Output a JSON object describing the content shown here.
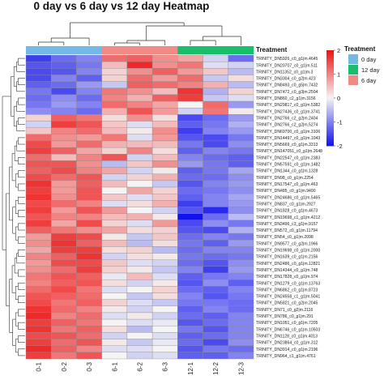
{
  "chart_data": {
    "type": "heatmap",
    "title": "0 day vs 6 day vs 12 day Heatmap",
    "columns": [
      "0-1",
      "0-2",
      "0-3",
      "6-1",
      "6-2",
      "6-3",
      "12-1",
      "12-2",
      "12-3"
    ],
    "column_groups": [
      "0 day",
      "0 day",
      "0 day",
      "6 day",
      "6 day",
      "6 day",
      "12 day",
      "12 day",
      "12 day"
    ],
    "annotation_title": "Treatment",
    "legend": {
      "title": "Treatment",
      "entries": [
        {
          "label": "0 day",
          "color": "#74B9E6"
        },
        {
          "label": "12 day",
          "color": "#19BE6A"
        },
        {
          "label": "6 day",
          "color": "#F08A84"
        }
      ]
    },
    "colorbar": {
      "ticks": [
        2,
        1,
        0,
        -1,
        -2
      ],
      "range": [
        -2,
        2
      ],
      "low": "#1111EE",
      "mid": "#F4F4F4",
      "high": "#EE1111"
    },
    "rows": [
      "TRINITY_DN5926_c0_g1|m.4645",
      "TRINITY_DN20707_c0_g1|m.511",
      "TRINITY_DN11352_c0_g1|m.3",
      "TRINITY_DN3304_c0_g2|m.423",
      "TRINITY_DN8493_c0_g5|m.7432",
      "TRINITY_DN7472_c0_g3|m.2504",
      "TRINITY_DN860_c2_g1|m.3156",
      "TRINITY_DN29817_c0_g1|m.5382",
      "TRINITY_DN27436_c0_g1|m.3741",
      "TRINITY_DN2766_c2_g2|m.2404",
      "TRINITY_DN2766_c2_g2|m.5274",
      "TRINITY_DN69700_c0_g1|m.3106",
      "TRINITY_DN14497_c0_g1|m.1043",
      "TRINITY_DN5669_c0_g1|m.3313",
      "TRINITY_DN147051_c0_g1|m.2648",
      "TRINITY_DN22547_c0_g1|m.2383",
      "TRINITY_DN57591_c0_g1|m.1482",
      "TRINITY_DN1344_c0_g1|m.1328",
      "TRINITY_DN98_c0_g1|m.2254",
      "TRINITY_DN17547_c0_g1|m.463",
      "TRINITY_DN485_c0_g1|m.9490",
      "TRINITY_DN24686_c0_g1|m.5465",
      "TRINITY_DN837_c0_g1|m.2927",
      "TRINITY_DN1828_c0_g1|m.4673",
      "TRINITY_DN19698_c1_g1|m.4212",
      "TRINITY_DN3496_c3_g1|m.9157",
      "TRINITY_DN572_c0_g1|m.11794",
      "TRINITY_DN54_c0_g1|m.2098",
      "TRINITY_DN9577_c0_g2|m.1966",
      "TRINITY_DN19698_c0_g1|m.2000",
      "TRINITY_DN1639_c0_g1|m.2156",
      "TRINITY_DN2486_c0_g1|m.12821",
      "TRINITY_DN14344_c0_g1|m.748",
      "TRINITY_DN17828_c0_g1|m.974",
      "TRINITY_DN1279_c0_g1|m.13763",
      "TRINITY_DN6862_c0_g1|m.8723",
      "TRINITY_DN24558_c1_g1|m.5041",
      "TRINITY_DN5821_c0_g2|m.2045",
      "TRINITY_DN71_c0_g2|m.2116",
      "TRINITY_DN786_c0_g1|m.291",
      "TRINITY_DN1051_c0_g1|m.7205",
      "TRINITY_DN6746_c0_g1|m.10503",
      "TRINITY_DN1128_c0_g1|m.4013",
      "TRINITY_DN23864_c0_g1|m.312",
      "TRINITY_DN3914_c0_g1|m.2196",
      "TRINITY_DN964_c1_g1|m.4761"
    ],
    "values": [
      [
        -1.6,
        -1.2,
        -1.0,
        1.2,
        1.3,
        0.9,
        0.7,
        -0.3,
        -1.2
      ],
      [
        -1.4,
        -1.3,
        -1.1,
        0.5,
        1.8,
        0.9,
        1.1,
        -0.2,
        -0.3
      ],
      [
        -1.5,
        -1.4,
        -1.0,
        0.3,
        0.9,
        1.3,
        0.8,
        0.4,
        -0.5
      ],
      [
        -1.5,
        -1.0,
        -1.3,
        0.3,
        1.2,
        0.8,
        1.2,
        -0.4,
        0.2
      ],
      [
        -1.3,
        -1.2,
        -0.8,
        -0.4,
        1.3,
        1.2,
        1.0,
        0.6,
        -0.5
      ],
      [
        -1.1,
        -1.5,
        -1.0,
        1.1,
        0.9,
        0.5,
        1.7,
        -0.6,
        0.3
      ],
      [
        -1.2,
        -0.9,
        -1.2,
        1.0,
        0.6,
        1.3,
        1.6,
        -0.4,
        -0.2
      ],
      [
        -1.1,
        -0.8,
        -1.0,
        1.2,
        1.0,
        0.7,
        0.0,
        1.2,
        -0.8
      ],
      [
        -0.9,
        -1.0,
        -1.2,
        0.6,
        1.4,
        0.8,
        -0.3,
        1.1,
        0.1
      ],
      [
        0.3,
        1.3,
        1.1,
        0.2,
        0.9,
        0.2,
        -1.5,
        -1.2,
        -0.8
      ],
      [
        -0.3,
        1.6,
        1.4,
        0.4,
        -0.2,
        0.5,
        -1.3,
        -1.1,
        -0.6
      ],
      [
        0.4,
        1.0,
        1.2,
        0.5,
        0.1,
        0.9,
        -1.6,
        -1.0,
        -0.8
      ],
      [
        1.2,
        0.9,
        0.8,
        1.1,
        -0.2,
        0.8,
        -1.4,
        -1.5,
        -1.1
      ],
      [
        1.5,
        0.8,
        1.2,
        0.6,
        0.5,
        0.5,
        -1.1,
        -1.5,
        -0.9
      ],
      [
        1.6,
        1.3,
        0.7,
        0.3,
        1.0,
        0.2,
        -1.3,
        -1.0,
        -1.1
      ],
      [
        1.2,
        0.5,
        1.0,
        1.4,
        -0.3,
        0.5,
        -1.0,
        -1.2,
        -1.3
      ],
      [
        1.4,
        1.4,
        0.9,
        -0.5,
        0.4,
        0.9,
        -0.8,
        -1.1,
        -1.3
      ],
      [
        1.3,
        1.5,
        1.0,
        0.7,
        -0.3,
        0.1,
        -1.3,
        -1.1,
        -0.7
      ],
      [
        1.5,
        1.2,
        1.4,
        -0.3,
        0.3,
        0.6,
        -1.2,
        -1.2,
        -0.9
      ],
      [
        1.7,
        0.8,
        1.3,
        0.5,
        0.0,
        -0.4,
        -1.4,
        -1.0,
        -0.8
      ],
      [
        1.6,
        0.8,
        1.4,
        0.0,
        0.7,
        0.3,
        -1.2,
        -1.1,
        -0.9
      ],
      [
        1.7,
        0.9,
        1.4,
        0.4,
        -0.2,
        0.4,
        -1.3,
        -1.0,
        -0.7
      ],
      [
        1.5,
        1.2,
        1.0,
        -0.2,
        0.2,
        0.6,
        -1.6,
        -1.0,
        -0.8
      ],
      [
        1.6,
        0.8,
        1.4,
        0.8,
        0.0,
        -0.3,
        -1.4,
        -1.8,
        -0.9
      ],
      [
        1.4,
        1.0,
        1.0,
        0.5,
        0.6,
        0.1,
        -2.0,
        -1.2,
        -0.5
      ],
      [
        1.6,
        0.7,
        1.5,
        0.3,
        -0.2,
        0.8,
        -1.5,
        -0.9,
        -1.1
      ],
      [
        1.3,
        1.1,
        0.9,
        0.7,
        0.2,
        0.3,
        -1.4,
        -1.5,
        -0.6
      ],
      [
        0.8,
        1.6,
        1.5,
        0.1,
        -0.4,
        0.4,
        -1.2,
        -1.0,
        -1.1
      ],
      [
        0.9,
        1.7,
        1.3,
        0.5,
        -0.5,
        0.2,
        -1.1,
        -1.3,
        -0.8
      ],
      [
        0.7,
        1.6,
        1.6,
        0.2,
        0.3,
        -0.5,
        -1.2,
        -1.0,
        -1.0
      ],
      [
        1.0,
        1.3,
        1.7,
        -0.3,
        0.2,
        0.1,
        -1.1,
        -1.2,
        -1.1
      ],
      [
        0.8,
        1.5,
        1.5,
        0.4,
        -0.2,
        -0.3,
        -1.2,
        -1.4,
        -0.9
      ],
      [
        0.9,
        1.2,
        1.6,
        0.3,
        0.1,
        -0.4,
        -1.0,
        -1.6,
        -0.8
      ],
      [
        1.1,
        1.4,
        1.3,
        -0.1,
        0.5,
        -0.2,
        -1.3,
        -1.1,
        -1.0
      ],
      [
        1.0,
        1.3,
        1.4,
        0.2,
        -0.3,
        0.1,
        -1.4,
        -0.9,
        -1.3
      ],
      [
        1.2,
        1.5,
        1.1,
        -0.2,
        0.0,
        0.3,
        -1.2,
        -1.3,
        -1.0
      ],
      [
        1.4,
        1.3,
        1.2,
        0.0,
        -0.4,
        0.2,
        -1.0,
        -1.4,
        -1.1
      ],
      [
        1.5,
        1.1,
        1.3,
        0.3,
        -0.2,
        -0.4,
        -1.1,
        -1.1,
        -1.2
      ],
      [
        1.7,
        1.2,
        1.0,
        0.1,
        -0.3,
        0.0,
        -1.3,
        -1.0,
        -1.2
      ],
      [
        1.8,
        1.0,
        1.2,
        -0.2,
        0.1,
        -0.3,
        -1.2,
        -1.3,
        -1.0
      ],
      [
        1.6,
        1.3,
        1.1,
        0.0,
        -0.2,
        -0.1,
        -1.4,
        -1.2,
        -1.0
      ],
      [
        1.7,
        1.1,
        1.3,
        0.2,
        -0.5,
        0.0,
        -1.1,
        -1.4,
        -1.0
      ],
      [
        1.5,
        1.4,
        1.2,
        -0.3,
        0.0,
        -0.2,
        -1.3,
        -1.2,
        -1.0
      ],
      [
        1.6,
        1.2,
        1.4,
        0.1,
        -0.4,
        -0.1,
        -1.2,
        -1.5,
        -0.9
      ],
      [
        1.8,
        1.3,
        1.0,
        -0.2,
        -0.2,
        0.0,
        -1.4,
        -1.1,
        -1.2
      ],
      [
        1.6,
        1.1,
        1.4,
        0.0,
        -0.3,
        -0.2,
        -1.3,
        -1.3,
        -1.0
      ]
    ]
  }
}
